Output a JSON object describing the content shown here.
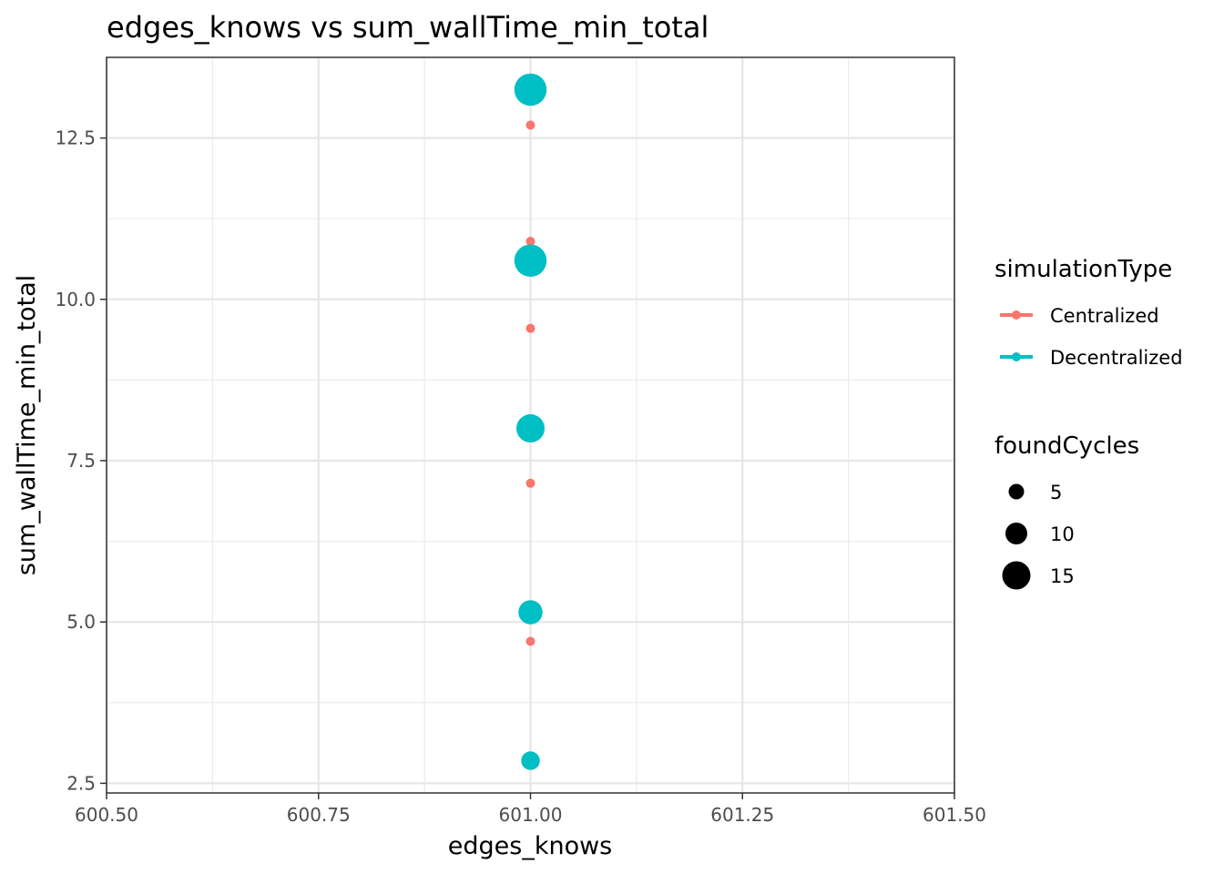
{
  "chart_data": {
    "type": "scatter",
    "title": "edges_knows  vs  sum_wallTime_min_total",
    "xlabel": "edges_knows",
    "ylabel": "sum_wallTime_min_total",
    "xlim": [
      600.5,
      601.5
    ],
    "ylim": [
      2.35,
      13.75
    ],
    "x_ticks": [
      600.5,
      600.75,
      601.0,
      601.25,
      601.5
    ],
    "x_tick_labels": [
      "600.50",
      "600.75",
      "601.00",
      "601.25",
      "601.50"
    ],
    "y_ticks": [
      2.5,
      5.0,
      7.5,
      10.0,
      12.5
    ],
    "y_tick_labels": [
      "2.5",
      "5.0",
      "7.5",
      "10.0",
      "12.5"
    ],
    "grid": true,
    "legend_placement": "right",
    "series": [
      {
        "name": "Centralized",
        "color": "#F8766D",
        "points": [
          {
            "x": 601.0,
            "y": 12.7,
            "size": 1
          },
          {
            "x": 601.0,
            "y": 10.9,
            "size": 1
          },
          {
            "x": 601.0,
            "y": 9.55,
            "size": 1
          },
          {
            "x": 601.0,
            "y": 7.15,
            "size": 1
          },
          {
            "x": 601.0,
            "y": 4.7,
            "size": 1
          }
        ]
      },
      {
        "name": "Decentralized",
        "color": "#00BFC4",
        "points": [
          {
            "x": 601.0,
            "y": 13.25,
            "size": 18
          },
          {
            "x": 601.0,
            "y": 10.6,
            "size": 18
          },
          {
            "x": 601.0,
            "y": 8.0,
            "size": 15
          },
          {
            "x": 601.0,
            "y": 5.15,
            "size": 12
          },
          {
            "x": 601.0,
            "y": 2.85,
            "size": 8
          }
        ]
      }
    ],
    "legend_color": {
      "title": "simulationType",
      "entries": [
        {
          "label": "Centralized",
          "color": "#F8766D"
        },
        {
          "label": "Decentralized",
          "color": "#00BFC4"
        }
      ]
    },
    "legend_size": {
      "title": "foundCycles",
      "entries": [
        {
          "label": "5",
          "value": 5
        },
        {
          "label": "10",
          "value": 10
        },
        {
          "label": "15",
          "value": 15
        }
      ]
    }
  }
}
